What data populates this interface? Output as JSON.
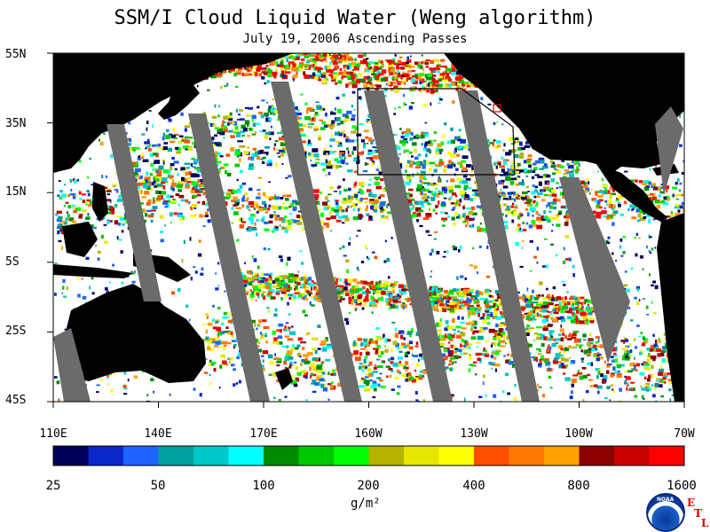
{
  "header": {
    "title": "SSM/I Cloud Liquid Water (Weng algorithm)",
    "subtitle": "July 19, 2006  Ascending Passes"
  },
  "map": {
    "lat_labels": [
      "55N",
      "35N",
      "15N",
      "5S",
      "25S",
      "45S"
    ],
    "lon_labels": [
      "110E",
      "140E",
      "170E",
      "160W",
      "130W",
      "100W",
      "70W"
    ]
  },
  "colorbar": {
    "tick_labels": [
      "25",
      "50",
      "100",
      "200",
      "400",
      "800",
      "1600"
    ],
    "units": "g/m²",
    "colors": [
      "#00005a",
      "#0a28c8",
      "#1e64ff",
      "#00a0a0",
      "#00c8c8",
      "#00ffff",
      "#008c00",
      "#00c800",
      "#00ff00",
      "#b4b400",
      "#e6e600",
      "#ffff00",
      "#ff5000",
      "#ff7800",
      "#ffa000",
      "#8c0000",
      "#c80000",
      "#ff0000"
    ]
  },
  "branding": {
    "logo": "NOAA",
    "etl_letters": [
      "E",
      "T",
      "L"
    ]
  },
  "colors": {
    "land": "#000000",
    "no_data_swath_gap": "#6b6b6b",
    "ocean_clear": "#ffffff",
    "box_outline": "#000000",
    "small_box": "#e00000"
  }
}
